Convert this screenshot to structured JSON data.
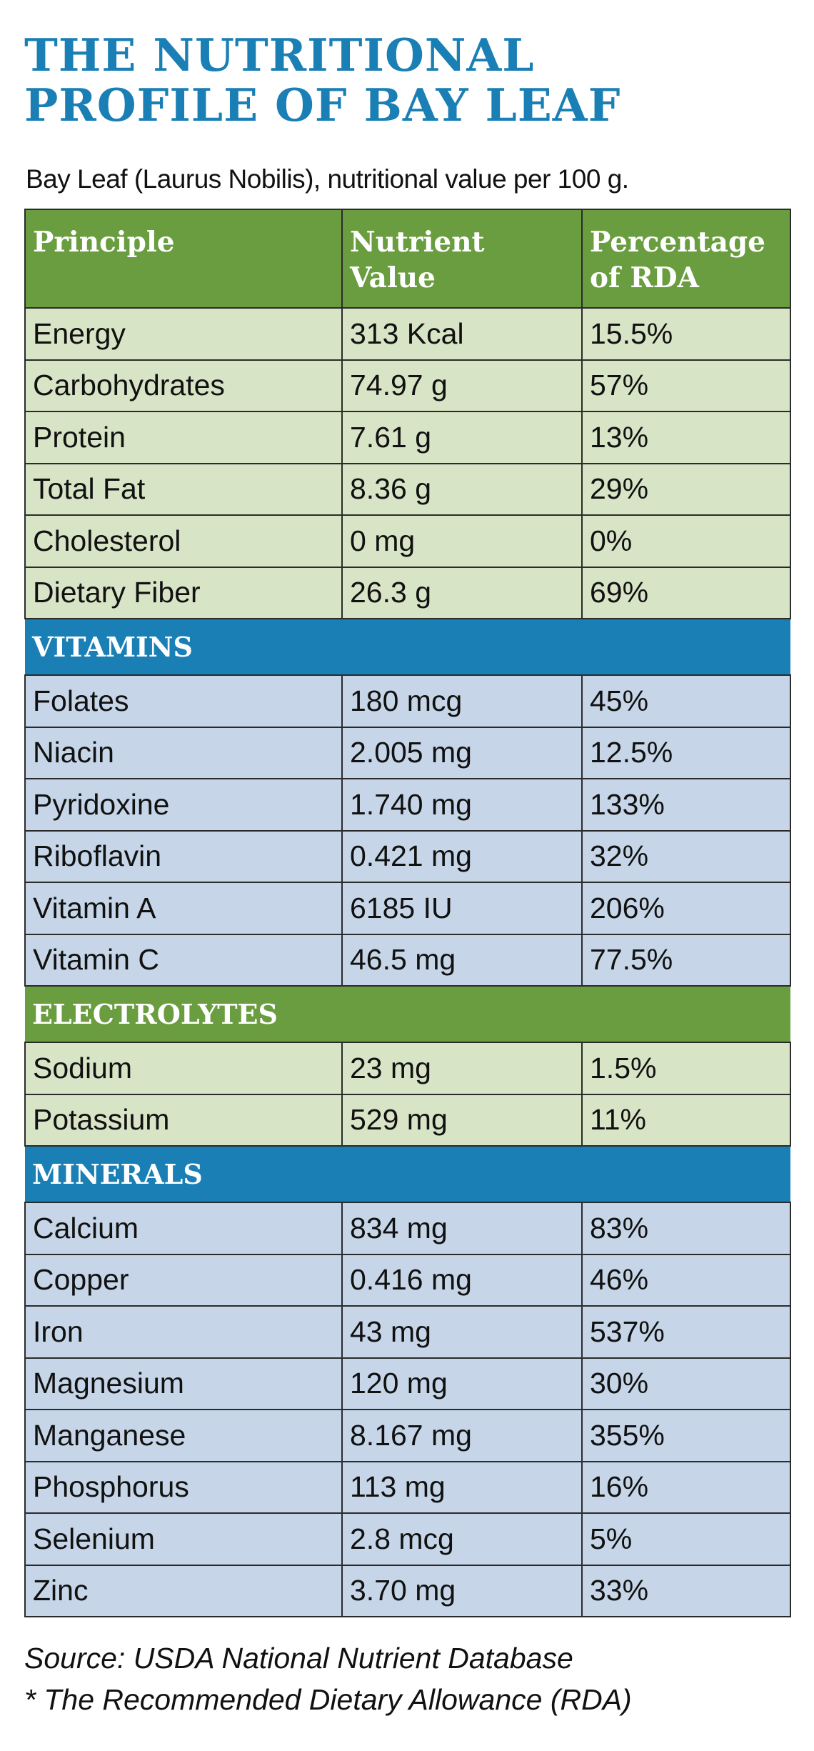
{
  "title": {
    "line1": "THE NUTRITIONAL",
    "line2": "PROFILE OF BAY LEAF"
  },
  "subtitle": "Bay Leaf (Laurus Nobilis), nutritional value per 100 g.",
  "table": {
    "headers": {
      "principle": "Principle",
      "nutrient_value_line1": "Nutrient",
      "nutrient_value_line2": "Value",
      "percentage_line1": "Percentage",
      "percentage_line2": "of RDA"
    },
    "sections": [
      {
        "title": "",
        "rows": [
          {
            "principle": "Energy",
            "value": "313 Kcal",
            "rda": "15.5%"
          },
          {
            "principle": "Carbohydrates",
            "value": "74.97 g",
            "rda": "57%"
          },
          {
            "principle": "Protein",
            "value": "7.61 g",
            "rda": " 13%"
          },
          {
            "principle": "Total Fat",
            "value": "8.36 g",
            "rda": " 29%"
          },
          {
            "principle": "Cholesterol",
            "value": "0 mg",
            "rda": "0%"
          },
          {
            "principle": "Dietary Fiber",
            "value": "26.3 g",
            "rda": "69%"
          }
        ]
      },
      {
        "title": "VITAMINS",
        "rows": [
          {
            "principle": "Folates",
            "value": "180 mcg",
            "rda": "45%"
          },
          {
            "principle": "Niacin",
            "value": "2.005 mg",
            "rda": "12.5%"
          },
          {
            "principle": "Pyridoxine",
            "value": "1.740 mg",
            "rda": "133%"
          },
          {
            "principle": "Riboflavin",
            "value": "0.421 mg",
            "rda": "32%"
          },
          {
            "principle": "Vitamin A",
            "value": "6185 IU",
            "rda": "206%"
          },
          {
            "principle": "Vitamin C",
            "value": "46.5 mg",
            "rda": "77.5%"
          }
        ]
      },
      {
        "title": "ELECTROLYTES",
        "rows": [
          {
            "principle": "Sodium",
            "value": "23 mg",
            "rda": "1.5%"
          },
          {
            "principle": "Potassium",
            "value": "529 mg",
            "rda": "11%"
          }
        ]
      },
      {
        "title": "MINERALS",
        "rows": [
          {
            "principle": "Calcium",
            "value": "834 mg",
            "rda": "83%"
          },
          {
            "principle": "Copper",
            "value": "0.416 mg",
            "rda": "46%"
          },
          {
            "principle": "Iron",
            "value": "43 mg",
            "rda": "537%"
          },
          {
            "principle": "Magnesium",
            "value": "120 mg",
            "rda": "30%"
          },
          {
            "principle": "Manganese",
            "value": "8.167 mg",
            "rda": "355%"
          },
          {
            "principle": "Phosphorus",
            "value": "113 mg",
            "rda": "16%"
          },
          {
            "principle": "Selenium",
            "value": "2.8 mcg",
            "rda": "5%"
          },
          {
            "principle": "Zinc",
            "value": "3.70 mg",
            "rda": "33%"
          }
        ]
      }
    ]
  },
  "footer": {
    "source": "Source: USDA National Nutrient Database",
    "note": "* The Recommended Dietary Allowance (RDA)"
  },
  "colors": {
    "title_blue": "#1a7fb5",
    "header_green": "#6a9d3f",
    "row_green": "#d8e4c6",
    "row_blue": "#c6d6e8"
  }
}
